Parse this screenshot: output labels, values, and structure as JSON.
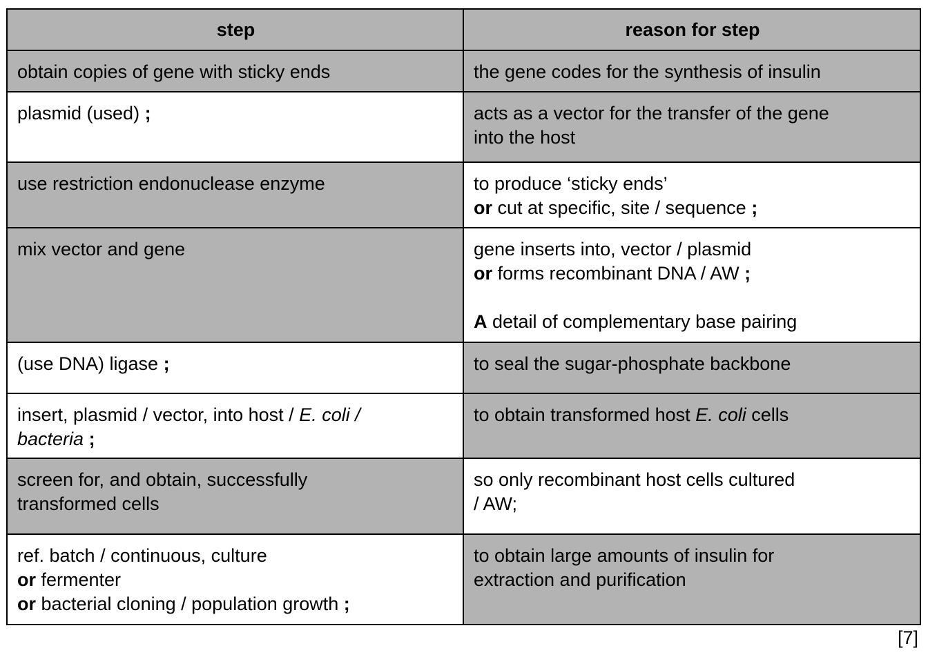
{
  "header": {
    "step": "step",
    "reason": "reason for step"
  },
  "rows": [
    {
      "step": [
        "obtain copies of gene with sticky ends"
      ],
      "reason": [
        "the gene codes for the synthesis of insulin"
      ]
    },
    {
      "step": [
        "plasmid (used) ",
        ";"
      ],
      "reason": [
        "acts as a vector for the transfer of the gene",
        "into the host"
      ]
    },
    {
      "step": [
        "use restriction endonuclease enzyme"
      ],
      "reason": [
        "to produce ‘sticky ends’",
        "or",
        " cut at specific, site / sequence ",
        ";"
      ]
    },
    {
      "step": [
        "mix vector and gene"
      ],
      "reason": [
        "gene inserts into, vector / plasmid",
        "or",
        " forms recombinant DNA / AW ",
        ";",
        "A",
        " detail of complementary base pairing"
      ]
    },
    {
      "step": [
        "(use DNA) ligase ",
        ";"
      ],
      "reason": [
        "to seal the sugar-phosphate backbone"
      ]
    },
    {
      "step": [
        "insert, plasmid / vector, into host / ",
        "E. coli /",
        "bacteria",
        " ;"
      ],
      "reason": [
        "to obtain transformed host ",
        "E. coli",
        " cells"
      ]
    },
    {
      "step": [
        "screen for, and obtain, successfully",
        "transformed cells"
      ],
      "reason": [
        "so only recombinant host cells cultured",
        "/ AW;"
      ]
    },
    {
      "step": [
        "ref. batch / continuous, culture",
        "or",
        " fermenter",
        "or",
        " bacterial cloning / population growth ",
        ";"
      ],
      "reason": [
        "to obtain large amounts of insulin for",
        "extraction and purification"
      ]
    }
  ],
  "marks": "[7]"
}
